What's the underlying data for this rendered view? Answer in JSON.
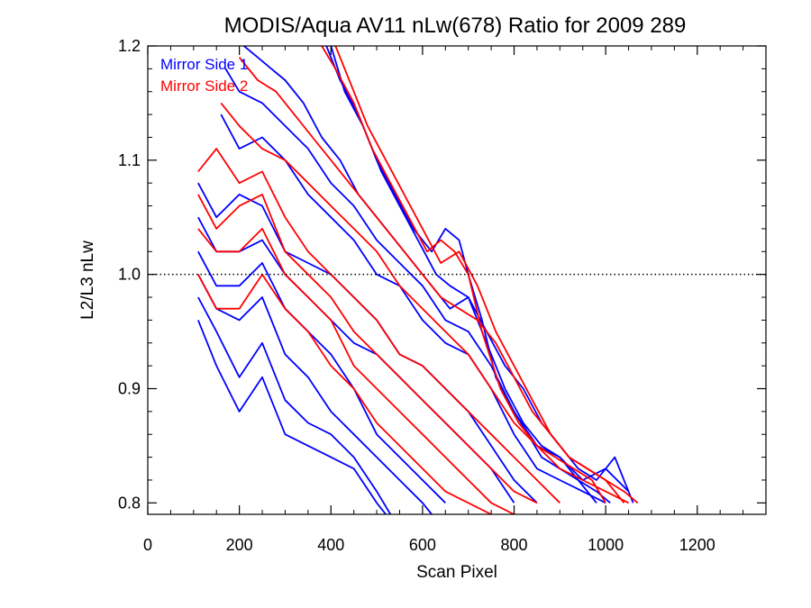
{
  "chart_data": {
    "type": "line",
    "title": "MODIS/Aqua AV11 nLw(678) Ratio for 2009 289",
    "xlabel": "Scan Pixel",
    "ylabel": "L2/L3 nLw",
    "xlim": [
      0,
      1350
    ],
    "ylim": [
      0.79,
      1.2
    ],
    "x_ticks": [
      0,
      200,
      400,
      600,
      800,
      1000,
      1200
    ],
    "x_tick_labels": [
      "0",
      "200",
      "400",
      "600",
      "800",
      "1000",
      "1200"
    ],
    "y_ticks": [
      0.8,
      0.9,
      1.0,
      1.1,
      1.2
    ],
    "y_tick_labels": [
      "0.8",
      "0.9",
      "1.0",
      "1.1",
      "1.2"
    ],
    "reference_line": {
      "y": 1.0,
      "style": "dotted"
    },
    "legend_position": "top-left",
    "series": [
      {
        "name": "Mirror Side 1",
        "color": "#0000ff",
        "group": "ms1",
        "x": [
          110,
          150,
          200,
          250,
          300,
          350,
          400,
          450,
          500,
          520
        ],
        "y": [
          0.96,
          0.92,
          0.88,
          0.91,
          0.86,
          0.85,
          0.84,
          0.83,
          0.8,
          0.79
        ]
      },
      {
        "group": "ms1",
        "x": [
          110,
          150,
          200,
          250,
          300,
          350,
          400,
          450,
          500,
          530
        ],
        "y": [
          0.98,
          0.95,
          0.91,
          0.94,
          0.89,
          0.87,
          0.86,
          0.84,
          0.81,
          0.79
        ]
      },
      {
        "group": "ms1",
        "x": [
          110,
          150,
          200,
          250,
          300,
          350,
          400,
          450,
          500,
          550,
          600,
          620
        ],
        "y": [
          1.0,
          0.97,
          0.96,
          0.98,
          0.93,
          0.91,
          0.88,
          0.86,
          0.84,
          0.82,
          0.8,
          0.79
        ]
      },
      {
        "group": "ms1",
        "x": [
          110,
          150,
          200,
          250,
          300,
          350,
          400,
          450,
          500,
          550,
          600,
          650
        ],
        "y": [
          1.02,
          0.99,
          0.99,
          1.01,
          0.97,
          0.95,
          0.93,
          0.9,
          0.86,
          0.84,
          0.82,
          0.8
        ]
      },
      {
        "group": "ms1",
        "x": [
          110,
          150,
          200,
          250,
          300,
          350,
          400,
          450,
          500,
          550,
          600,
          650,
          700,
          750,
          800
        ],
        "y": [
          1.05,
          1.02,
          1.02,
          1.03,
          1.0,
          0.98,
          0.96,
          0.94,
          0.93,
          0.91,
          0.89,
          0.87,
          0.85,
          0.83,
          0.8
        ]
      },
      {
        "group": "ms1",
        "x": [
          110,
          150,
          200,
          250,
          300,
          350,
          400,
          450,
          500,
          550,
          600,
          650,
          700,
          750,
          800,
          850
        ],
        "y": [
          1.08,
          1.05,
          1.07,
          1.06,
          1.02,
          1.01,
          1.0,
          0.98,
          0.96,
          0.93,
          0.92,
          0.9,
          0.88,
          0.85,
          0.82,
          0.8
        ]
      },
      {
        "group": "ms1",
        "x": [
          160,
          200,
          250,
          300,
          350,
          400,
          450,
          500,
          550,
          600,
          650,
          700,
          750,
          800,
          850,
          900,
          950,
          1000
        ],
        "y": [
          1.14,
          1.11,
          1.12,
          1.1,
          1.07,
          1.05,
          1.03,
          1.0,
          0.99,
          0.96,
          0.94,
          0.93,
          0.9,
          0.86,
          0.83,
          0.82,
          0.81,
          0.8
        ]
      },
      {
        "group": "ms1",
        "x": [
          170,
          200,
          250,
          300,
          350,
          400,
          450,
          500,
          550,
          600,
          650,
          700,
          750,
          800,
          850,
          900,
          950,
          1000,
          1050
        ],
        "y": [
          1.18,
          1.16,
          1.15,
          1.13,
          1.11,
          1.08,
          1.06,
          1.03,
          1.01,
          0.99,
          0.96,
          0.95,
          0.92,
          0.88,
          0.85,
          0.84,
          0.82,
          0.83,
          0.81
        ]
      },
      {
        "group": "ms1",
        "x": [
          210,
          240,
          270,
          300,
          340,
          380,
          420,
          460,
          500,
          540,
          580,
          620,
          660,
          700,
          740,
          780,
          820,
          860,
          900,
          940,
          980,
          1020,
          1060
        ],
        "y": [
          1.2,
          1.19,
          1.18,
          1.17,
          1.15,
          1.12,
          1.1,
          1.07,
          1.05,
          1.03,
          1.01,
          0.99,
          0.97,
          0.98,
          0.95,
          0.92,
          0.9,
          0.87,
          0.85,
          0.83,
          0.82,
          0.84,
          0.8
        ]
      },
      {
        "group": "ms1",
        "x": [
          390,
          420,
          460,
          500,
          540,
          580,
          620,
          650,
          680,
          700,
          730,
          760,
          800,
          830,
          860,
          900,
          940,
          980,
          1010
        ],
        "y": [
          1.2,
          1.17,
          1.14,
          1.1,
          1.07,
          1.04,
          1.02,
          1.04,
          1.03,
          1.0,
          0.96,
          0.91,
          0.88,
          0.86,
          0.84,
          0.83,
          0.82,
          0.81,
          0.8
        ]
      },
      {
        "group": "ms1",
        "x": [
          400,
          430,
          470,
          510,
          550,
          590,
          630,
          660,
          700,
          740,
          780,
          820,
          860,
          900,
          940,
          980
        ],
        "y": [
          1.2,
          1.16,
          1.13,
          1.09,
          1.06,
          1.03,
          1.0,
          0.99,
          0.98,
          0.94,
          0.9,
          0.87,
          0.85,
          0.84,
          0.82,
          0.8
        ]
      },
      {
        "name": "Mirror Side 2",
        "color": "#ff0000",
        "group": "ms2",
        "x": [
          110,
          150,
          200,
          250,
          300,
          350,
          400,
          450,
          500,
          550,
          600,
          650,
          700,
          750
        ],
        "y": [
          1.0,
          0.97,
          0.97,
          1.0,
          0.97,
          0.95,
          0.92,
          0.9,
          0.87,
          0.85,
          0.83,
          0.81,
          0.8,
          0.79
        ]
      },
      {
        "group": "ms2",
        "x": [
          110,
          150,
          200,
          250,
          300,
          350,
          400,
          450,
          500,
          550,
          600,
          650,
          700,
          750,
          800
        ],
        "y": [
          1.04,
          1.02,
          1.02,
          1.04,
          1.0,
          0.98,
          0.96,
          0.92,
          0.9,
          0.88,
          0.86,
          0.84,
          0.82,
          0.8,
          0.79
        ]
      },
      {
        "group": "ms2",
        "x": [
          110,
          150,
          200,
          250,
          300,
          350,
          400,
          450,
          500,
          550,
          600,
          650,
          700,
          750,
          800,
          850
        ],
        "y": [
          1.07,
          1.04,
          1.06,
          1.07,
          1.02,
          1.0,
          0.98,
          0.95,
          0.93,
          0.91,
          0.89,
          0.87,
          0.85,
          0.83,
          0.81,
          0.8
        ]
      },
      {
        "group": "ms2",
        "x": [
          110,
          150,
          200,
          250,
          300,
          350,
          400,
          450,
          500,
          550,
          600,
          650,
          700,
          750,
          800,
          850,
          900
        ],
        "y": [
          1.09,
          1.11,
          1.08,
          1.09,
          1.05,
          1.02,
          1.0,
          0.98,
          0.96,
          0.93,
          0.92,
          0.9,
          0.88,
          0.86,
          0.84,
          0.82,
          0.8
        ]
      },
      {
        "group": "ms2",
        "x": [
          160,
          200,
          250,
          300,
          350,
          400,
          450,
          500,
          550,
          600,
          650,
          700,
          750,
          800,
          850,
          900,
          950,
          1000,
          1050
        ],
        "y": [
          1.15,
          1.13,
          1.11,
          1.1,
          1.08,
          1.06,
          1.04,
          1.02,
          0.99,
          0.97,
          0.95,
          0.93,
          0.9,
          0.87,
          0.85,
          0.83,
          0.82,
          0.81,
          0.8
        ]
      },
      {
        "group": "ms2",
        "x": [
          200,
          240,
          280,
          320,
          360,
          400,
          440,
          480,
          520,
          560,
          600,
          640,
          680,
          720,
          760,
          800,
          840,
          880,
          920,
          960,
          1000,
          1040,
          1070
        ],
        "y": [
          1.19,
          1.17,
          1.16,
          1.14,
          1.12,
          1.1,
          1.08,
          1.06,
          1.04,
          1.02,
          1.0,
          0.98,
          0.97,
          0.96,
          0.94,
          0.91,
          0.88,
          0.86,
          0.84,
          0.83,
          0.82,
          0.81,
          0.8
        ]
      },
      {
        "group": "ms2",
        "x": [
          380,
          410,
          450,
          490,
          530,
          570,
          610,
          640,
          670,
          700,
          730,
          770,
          810,
          850,
          890,
          930,
          970,
          1000
        ],
        "y": [
          1.2,
          1.18,
          1.15,
          1.11,
          1.08,
          1.05,
          1.02,
          1.03,
          1.02,
          1.0,
          0.95,
          0.9,
          0.87,
          0.85,
          0.84,
          0.83,
          0.82,
          0.8
        ]
      },
      {
        "group": "ms2",
        "x": [
          410,
          440,
          480,
          520,
          560,
          600,
          640,
          680,
          720,
          760,
          800,
          840,
          880,
          920,
          960,
          1000,
          1040
        ],
        "y": [
          1.2,
          1.17,
          1.13,
          1.1,
          1.07,
          1.04,
          1.01,
          1.02,
          0.99,
          0.95,
          0.92,
          0.89,
          0.86,
          0.84,
          0.83,
          0.82,
          0.8
        ]
      }
    ]
  }
}
